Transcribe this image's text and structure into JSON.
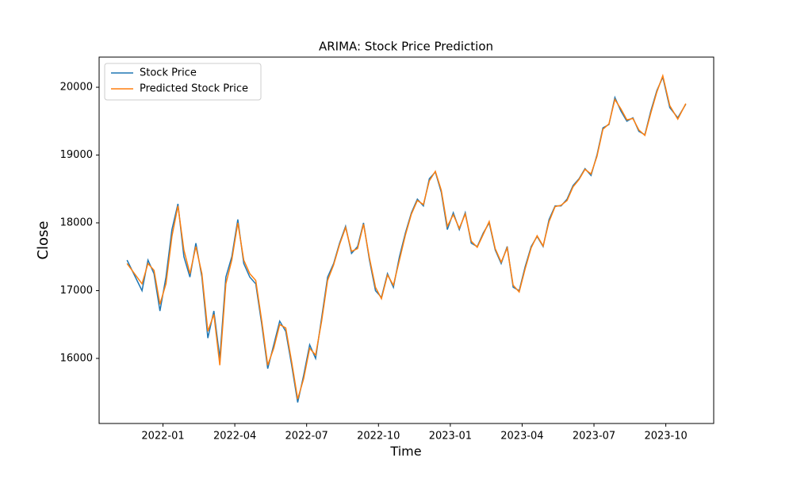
{
  "chart_data": {
    "type": "line",
    "title": "ARIMA: Stock Price Prediction",
    "xlabel": "Time",
    "ylabel": "Close",
    "x": [
      "2021-11",
      "2021-12",
      "2021-12",
      "2021-12",
      "2021-12",
      "2022-01",
      "2022-01",
      "2022-01",
      "2022-01",
      "2022-02",
      "2022-02",
      "2022-02",
      "2022-02",
      "2022-03",
      "2022-03",
      "2022-03",
      "2022-03",
      "2022-04",
      "2022-04",
      "2022-04",
      "2022-04",
      "2022-05",
      "2022-05",
      "2022-05",
      "2022-05",
      "2022-06",
      "2022-06",
      "2022-06",
      "2022-06",
      "2022-07",
      "2022-07",
      "2022-07",
      "2022-07",
      "2022-08",
      "2022-08",
      "2022-08",
      "2022-08",
      "2022-09",
      "2022-09",
      "2022-09",
      "2022-09",
      "2022-10",
      "2022-10",
      "2022-10",
      "2022-10",
      "2022-11",
      "2022-11",
      "2022-11",
      "2022-11",
      "2022-12",
      "2022-12",
      "2022-12",
      "2022-12",
      "2023-01",
      "2023-01",
      "2023-01",
      "2023-01",
      "2023-02",
      "2023-02",
      "2023-02",
      "2023-02",
      "2023-03",
      "2023-03",
      "2023-03",
      "2023-03",
      "2023-04",
      "2023-04",
      "2023-04",
      "2023-04",
      "2023-05",
      "2023-05",
      "2023-05",
      "2023-05",
      "2023-06",
      "2023-06",
      "2023-06",
      "2023-06",
      "2023-07",
      "2023-07",
      "2023-07",
      "2023-07",
      "2023-08",
      "2023-08",
      "2023-08",
      "2023-08",
      "2023-09",
      "2023-09",
      "2023-09",
      "2023-09",
      "2023-10",
      "2023-10",
      "2023-10"
    ],
    "series": [
      {
        "name": "Stock Price",
        "color": "#1f77b4",
        "values": [
          17450,
          17000,
          17450,
          17250,
          16700,
          17200,
          17900,
          18280,
          17500,
          17200,
          17700,
          17200,
          16300,
          16700,
          16000,
          17200,
          17500,
          18050,
          17400,
          17200,
          17100,
          16500,
          15850,
          16200,
          16550,
          16400,
          15900,
          15350,
          15750,
          16200,
          16000,
          16600,
          17200,
          17400,
          17700,
          17950,
          17550,
          17650,
          18000,
          17450,
          17000,
          16900,
          17250,
          17050,
          17500,
          17850,
          18150,
          18350,
          18250,
          18650,
          18750,
          18450,
          17900,
          18150,
          17900,
          18150,
          17700,
          17650,
          17850,
          18000,
          17600,
          17400,
          17650,
          17050,
          17000,
          17350,
          17650,
          17800,
          17650,
          18050,
          18250,
          18250,
          18350,
          18550,
          18650,
          18800,
          18700,
          19000,
          19400,
          19450,
          19850,
          19650,
          19500,
          19550,
          19350,
          19300,
          19650,
          19950,
          20150,
          19700,
          19550,
          19750
        ]
      },
      {
        "name": "Predicted Stock Price",
        "color": "#ff7f0e",
        "values": [
          17400,
          17100,
          17400,
          17300,
          16800,
          17100,
          17800,
          18250,
          17600,
          17250,
          17650,
          17250,
          16400,
          16650,
          15900,
          17100,
          17450,
          18000,
          17450,
          17250,
          17150,
          16550,
          15900,
          16150,
          16500,
          16450,
          15950,
          15400,
          15700,
          16150,
          16050,
          16550,
          17150,
          17380,
          17680,
          17930,
          17580,
          17620,
          17980,
          17480,
          17050,
          16880,
          17230,
          17080,
          17450,
          17820,
          18130,
          18330,
          18270,
          18620,
          18760,
          18480,
          17950,
          18120,
          17920,
          18130,
          17730,
          17640,
          17830,
          18020,
          17620,
          17420,
          17630,
          17080,
          16980,
          17320,
          17630,
          17810,
          17660,
          18020,
          18240,
          18260,
          18330,
          18530,
          18640,
          18790,
          18720,
          18980,
          19380,
          19460,
          19820,
          19680,
          19520,
          19540,
          19370,
          19290,
          19620,
          19930,
          20170,
          19730,
          19530,
          19760
        ]
      }
    ],
    "ylim": [
      15040,
      20445
    ],
    "yticks": [
      16000,
      17000,
      18000,
      19000,
      20000
    ],
    "xticks": [
      "2022-01",
      "2022-04",
      "2022-07",
      "2022-10",
      "2023-01",
      "2023-04",
      "2023-07",
      "2023-10"
    ],
    "legend": "upper left"
  }
}
